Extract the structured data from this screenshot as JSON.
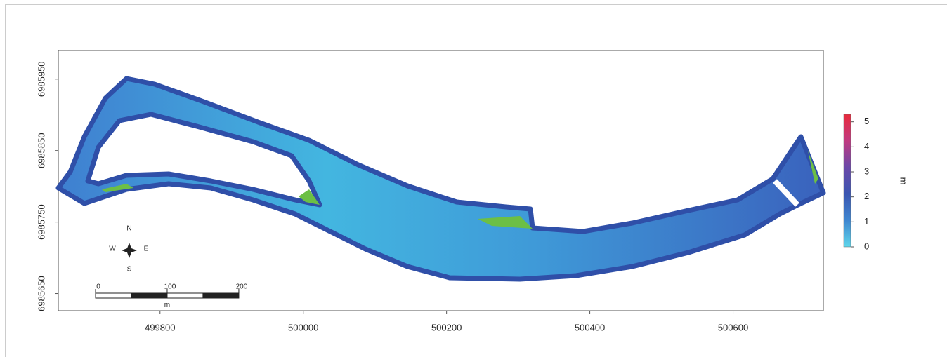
{
  "map": {
    "xlim": [
      499658,
      500726
    ],
    "ylim": [
      6985626,
      6985990
    ],
    "xticks": [
      499800,
      500000,
      500200,
      500400,
      500600
    ],
    "yticks": [
      6985650,
      6985750,
      6985850,
      6985950
    ],
    "legend": {
      "label": "m",
      "lim": [
        0,
        5.3
      ],
      "ticks": [
        0,
        1,
        2,
        3,
        4,
        5
      ],
      "colors": [
        "#5fd6ea",
        "#3f86d0",
        "#3a55b0",
        "#6a48a8",
        "#c03a80",
        "#e82a3c"
      ]
    },
    "compass": {
      "n": "N",
      "w": "W",
      "e": "E",
      "s": "S"
    },
    "scale_bar": {
      "ticks": [
        0,
        100,
        200
      ],
      "unit": "m"
    }
  }
}
